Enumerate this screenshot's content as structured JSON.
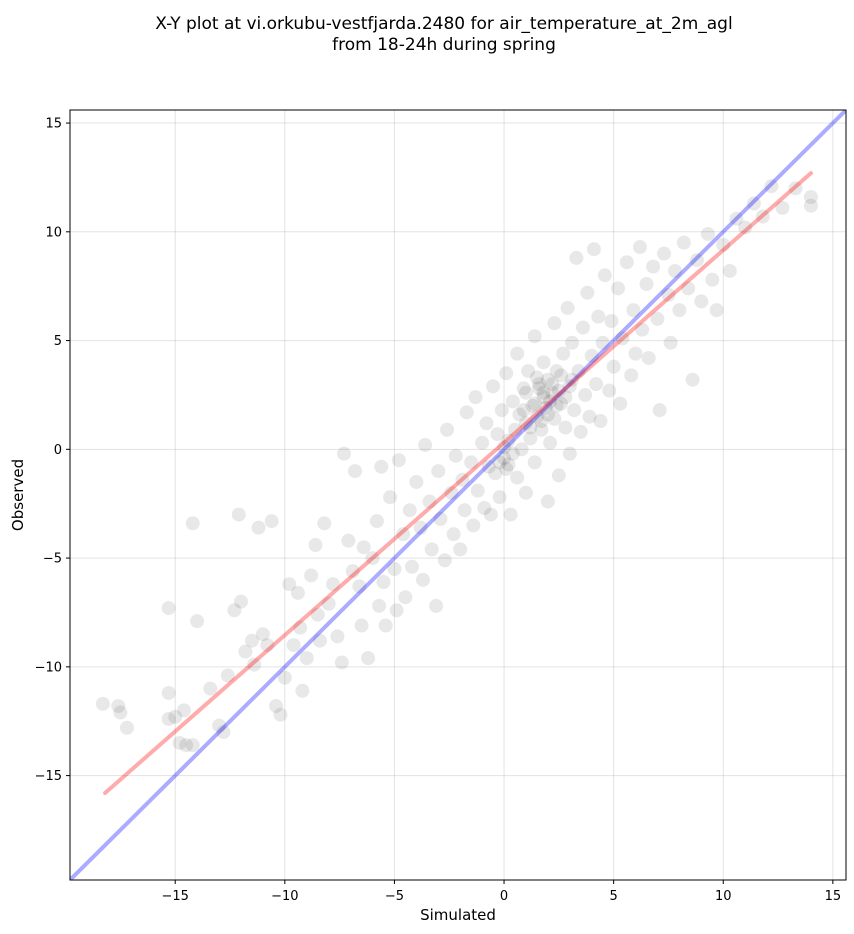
{
  "chart_data": {
    "type": "scatter",
    "title": "X-Y plot at vi.orkubu-vestfjarda.2480 for air_temperature_at_2m_agl",
    "subtitle": "from 18-24h during spring",
    "xlabel": "Simulated",
    "ylabel": "Observed",
    "xlim": [
      -19.8,
      15.6
    ],
    "ylim": [
      -19.8,
      15.6
    ],
    "xticks": [
      -15,
      -10,
      -5,
      0,
      5,
      10,
      15
    ],
    "yticks": [
      -15,
      -10,
      -5,
      0,
      5,
      10,
      15
    ],
    "grid": true,
    "colors": {
      "points": "#000000",
      "fit_line": "#ff0000",
      "identity_line": "#0000ff"
    },
    "fit_line": {
      "x": [
        -18.2,
        14.0
      ],
      "y": [
        -15.8,
        12.7
      ]
    },
    "identity_line": {
      "x": [
        -19.8,
        15.6
      ],
      "y": [
        -19.8,
        15.6
      ]
    },
    "points": [
      [
        -18.3,
        -11.7
      ],
      [
        -17.6,
        -11.8
      ],
      [
        -17.5,
        -12.1
      ],
      [
        -17.2,
        -12.8
      ],
      [
        -15.3,
        -7.3
      ],
      [
        -15.3,
        -11.2
      ],
      [
        -15.3,
        -12.4
      ],
      [
        -15.0,
        -12.3
      ],
      [
        -14.8,
        -13.5
      ],
      [
        -14.6,
        -12.0
      ],
      [
        -14.5,
        -13.6
      ],
      [
        -14.2,
        -13.6
      ],
      [
        -14.2,
        -3.4
      ],
      [
        -14.0,
        -7.9
      ],
      [
        -13.4,
        -11.0
      ],
      [
        -13.0,
        -12.7
      ],
      [
        -12.8,
        -13.0
      ],
      [
        -12.6,
        -10.4
      ],
      [
        -12.3,
        -7.4
      ],
      [
        -12.1,
        -3.0
      ],
      [
        -12.0,
        -7.0
      ],
      [
        -11.8,
        -9.3
      ],
      [
        -11.5,
        -8.8
      ],
      [
        -11.4,
        -9.9
      ],
      [
        -11.2,
        -3.6
      ],
      [
        -11.0,
        -8.5
      ],
      [
        -10.8,
        -9.0
      ],
      [
        -10.6,
        -3.3
      ],
      [
        -10.4,
        -11.8
      ],
      [
        -10.2,
        -12.2
      ],
      [
        -10.0,
        -10.5
      ],
      [
        -9.8,
        -6.2
      ],
      [
        -9.6,
        -9.0
      ],
      [
        -9.4,
        -6.6
      ],
      [
        -9.3,
        -8.2
      ],
      [
        -9.2,
        -11.1
      ],
      [
        -9.0,
        -9.6
      ],
      [
        -8.8,
        -5.8
      ],
      [
        -8.6,
        -4.4
      ],
      [
        -8.5,
        -7.6
      ],
      [
        -8.4,
        -8.8
      ],
      [
        -8.2,
        -3.4
      ],
      [
        -8.0,
        -7.1
      ],
      [
        -7.8,
        -6.2
      ],
      [
        -7.6,
        -8.6
      ],
      [
        -7.4,
        -9.8
      ],
      [
        -7.3,
        -0.2
      ],
      [
        -7.1,
        -4.2
      ],
      [
        -6.9,
        -5.6
      ],
      [
        -6.8,
        -1.0
      ],
      [
        -6.6,
        -6.3
      ],
      [
        -6.5,
        -8.1
      ],
      [
        -6.4,
        -4.5
      ],
      [
        -6.2,
        -9.6
      ],
      [
        -6.0,
        -5.0
      ],
      [
        -5.8,
        -3.3
      ],
      [
        -5.7,
        -7.2
      ],
      [
        -5.6,
        -0.8
      ],
      [
        -5.5,
        -6.1
      ],
      [
        -5.4,
        -8.1
      ],
      [
        -5.2,
        -2.2
      ],
      [
        -5.0,
        -5.5
      ],
      [
        -4.9,
        -7.4
      ],
      [
        -4.8,
        -0.5
      ],
      [
        -4.6,
        -3.9
      ],
      [
        -4.5,
        -6.8
      ],
      [
        -4.3,
        -2.8
      ],
      [
        -4.2,
        -5.4
      ],
      [
        -4.0,
        -1.5
      ],
      [
        -3.8,
        -3.6
      ],
      [
        -3.7,
        -6.0
      ],
      [
        -3.6,
        0.2
      ],
      [
        -3.4,
        -2.4
      ],
      [
        -3.3,
        -4.6
      ],
      [
        -3.1,
        -7.2
      ],
      [
        -3.0,
        -1.0
      ],
      [
        -2.9,
        -3.2
      ],
      [
        -2.7,
        -5.1
      ],
      [
        -2.6,
        0.9
      ],
      [
        -2.4,
        -2.0
      ],
      [
        -2.3,
        -3.9
      ],
      [
        -2.2,
        -0.3
      ],
      [
        -2.0,
        -4.6
      ],
      [
        -1.9,
        -1.4
      ],
      [
        -1.8,
        -2.8
      ],
      [
        -1.7,
        1.7
      ],
      [
        -1.5,
        -0.6
      ],
      [
        -1.4,
        -3.5
      ],
      [
        -1.3,
        2.4
      ],
      [
        -1.2,
        -1.9
      ],
      [
        -1.0,
        0.3
      ],
      [
        -0.9,
        -2.7
      ],
      [
        -0.8,
        1.2
      ],
      [
        -0.7,
        -0.8
      ],
      [
        -0.6,
        -3.0
      ],
      [
        -0.5,
        2.9
      ],
      [
        -0.4,
        -1.1
      ],
      [
        -0.3,
        0.7
      ],
      [
        -0.2,
        -2.2
      ],
      [
        -0.1,
        1.8
      ],
      [
        0.0,
        -0.4
      ],
      [
        0.1,
        3.5
      ],
      [
        0.1,
        -0.9
      ],
      [
        0.2,
        0.4
      ],
      [
        0.3,
        -3.0
      ],
      [
        0.4,
        2.2
      ],
      [
        0.5,
        0.9
      ],
      [
        0.6,
        4.4
      ],
      [
        0.6,
        -1.3
      ],
      [
        0.7,
        1.6
      ],
      [
        0.8,
        0.0
      ],
      [
        0.9,
        2.8
      ],
      [
        1.0,
        -2.0
      ],
      [
        1.0,
        1.2
      ],
      [
        1.1,
        3.6
      ],
      [
        1.2,
        0.5
      ],
      [
        1.3,
        2.0
      ],
      [
        1.4,
        5.2
      ],
      [
        1.4,
        -0.6
      ],
      [
        1.5,
        1.5
      ],
      [
        1.6,
        3.0
      ],
      [
        1.7,
        0.9
      ],
      [
        1.8,
        2.4
      ],
      [
        1.8,
        4.0
      ],
      [
        1.9,
        1.9
      ],
      [
        2.0,
        -2.4
      ],
      [
        2.0,
        3.2
      ],
      [
        2.1,
        0.3
      ],
      [
        2.2,
        2.6
      ],
      [
        2.3,
        5.8
      ],
      [
        2.3,
        1.4
      ],
      [
        2.4,
        3.6
      ],
      [
        2.5,
        -1.2
      ],
      [
        2.6,
        2.1
      ],
      [
        2.7,
        4.4
      ],
      [
        2.8,
        1.0
      ],
      [
        2.9,
        6.5
      ],
      [
        3.0,
        2.9
      ],
      [
        3.0,
        -0.2
      ],
      [
        3.1,
        4.9
      ],
      [
        3.2,
        1.8
      ],
      [
        3.3,
        8.8
      ],
      [
        3.4,
        3.6
      ],
      [
        3.5,
        0.8
      ],
      [
        3.6,
        5.6
      ],
      [
        3.7,
        2.5
      ],
      [
        3.8,
        7.2
      ],
      [
        3.9,
        1.5
      ],
      [
        4.0,
        4.3
      ],
      [
        4.1,
        9.2
      ],
      [
        4.2,
        3.0
      ],
      [
        4.3,
        6.1
      ],
      [
        4.4,
        1.3
      ],
      [
        4.5,
        4.9
      ],
      [
        4.6,
        8.0
      ],
      [
        4.8,
        2.7
      ],
      [
        4.9,
        5.9
      ],
      [
        5.0,
        3.8
      ],
      [
        5.2,
        7.4
      ],
      [
        5.3,
        2.1
      ],
      [
        5.4,
        5.1
      ],
      [
        5.6,
        8.6
      ],
      [
        5.8,
        3.4
      ],
      [
        5.9,
        6.4
      ],
      [
        6.0,
        4.4
      ],
      [
        6.2,
        9.3
      ],
      [
        6.3,
        5.5
      ],
      [
        6.5,
        7.6
      ],
      [
        6.6,
        4.2
      ],
      [
        6.8,
        8.4
      ],
      [
        7.0,
        6.0
      ],
      [
        7.1,
        1.8
      ],
      [
        7.3,
        9.0
      ],
      [
        7.5,
        7.1
      ],
      [
        7.6,
        4.9
      ],
      [
        7.8,
        8.2
      ],
      [
        8.0,
        6.4
      ],
      [
        8.2,
        9.5
      ],
      [
        8.4,
        7.4
      ],
      [
        8.6,
        3.2
      ],
      [
        8.8,
        8.7
      ],
      [
        9.0,
        6.8
      ],
      [
        9.3,
        9.9
      ],
      [
        9.5,
        7.8
      ],
      [
        9.7,
        6.4
      ],
      [
        10.0,
        9.4
      ],
      [
        10.3,
        8.2
      ],
      [
        10.6,
        10.6
      ],
      [
        11.0,
        10.2
      ],
      [
        11.4,
        11.3
      ],
      [
        11.8,
        10.7
      ],
      [
        12.2,
        12.1
      ],
      [
        12.7,
        11.1
      ],
      [
        13.3,
        12.0
      ],
      [
        14.0,
        11.6
      ],
      [
        14.0,
        11.2
      ],
      [
        1.4,
        2.1
      ],
      [
        1.6,
        2.8
      ],
      [
        2.0,
        1.6
      ],
      [
        2.2,
        3.0
      ],
      [
        1.8,
        2.6
      ],
      [
        2.4,
        2.0
      ],
      [
        1.2,
        1.0
      ],
      [
        0.9,
        1.8
      ],
      [
        2.6,
        3.4
      ],
      [
        2.8,
        2.4
      ],
      [
        1.5,
        3.3
      ],
      [
        0.2,
        -0.7
      ],
      [
        0.0,
        0.1
      ],
      [
        -0.2,
        -0.6
      ],
      [
        0.4,
        -0.2
      ],
      [
        1.0,
        2.6
      ],
      [
        1.7,
        1.3
      ],
      [
        2.1,
        2.2
      ],
      [
        2.5,
        2.7
      ],
      [
        3.1,
        3.2
      ]
    ]
  }
}
